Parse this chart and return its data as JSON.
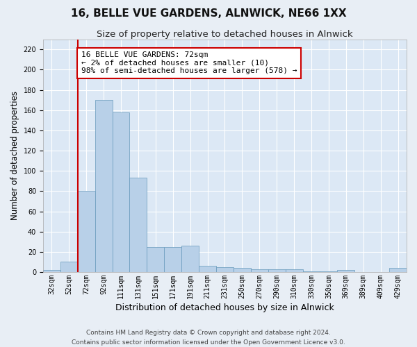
{
  "title": "16, BELLE VUE GARDENS, ALNWICK, NE66 1XX",
  "subtitle": "Size of property relative to detached houses in Alnwick",
  "xlabel": "Distribution of detached houses by size in Alnwick",
  "ylabel": "Number of detached properties",
  "categories": [
    "32sqm",
    "52sqm",
    "72sqm",
    "92sqm",
    "111sqm",
    "131sqm",
    "151sqm",
    "171sqm",
    "191sqm",
    "211sqm",
    "231sqm",
    "250sqm",
    "270sqm",
    "290sqm",
    "310sqm",
    "330sqm",
    "350sqm",
    "369sqm",
    "389sqm",
    "409sqm",
    "429sqm"
  ],
  "values": [
    2,
    10,
    80,
    170,
    158,
    93,
    25,
    25,
    26,
    6,
    5,
    4,
    3,
    3,
    3,
    1,
    1,
    2,
    0,
    0,
    4
  ],
  "bar_color": "#b8d0e8",
  "bar_edge_color": "#6699bb",
  "property_line_index": 2,
  "annotation_line1": "16 BELLE VUE GARDENS: 72sqm",
  "annotation_line2": "← 2% of detached houses are smaller (10)",
  "annotation_line3": "98% of semi-detached houses are larger (578) →",
  "annotation_box_color": "#ffffff",
  "annotation_box_edge_color": "#cc0000",
  "property_line_color": "#cc0000",
  "ylim": [
    0,
    230
  ],
  "yticks": [
    0,
    20,
    40,
    60,
    80,
    100,
    120,
    140,
    160,
    180,
    200,
    220
  ],
  "footer_line1": "Contains HM Land Registry data © Crown copyright and database right 2024.",
  "footer_line2": "Contains public sector information licensed under the Open Government Licence v3.0.",
  "fig_bg_color": "#e8eef5",
  "plot_bg_color": "#dce8f5",
  "grid_color": "#ffffff",
  "title_fontsize": 11,
  "subtitle_fontsize": 9.5,
  "axis_label_fontsize": 8.5,
  "tick_fontsize": 7,
  "annotation_fontsize": 8,
  "footer_fontsize": 6.5
}
